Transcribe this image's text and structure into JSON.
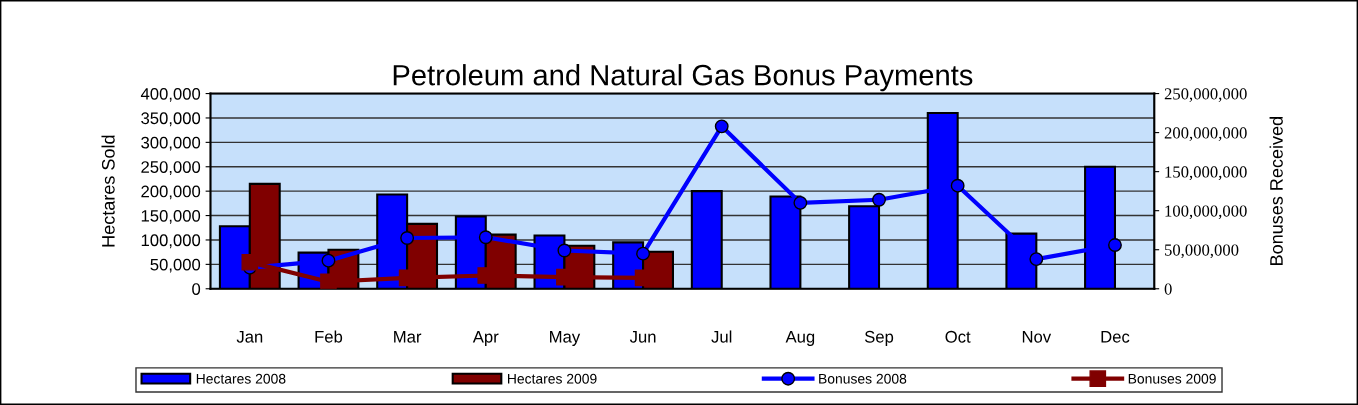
{
  "chart_data": {
    "type": "bar",
    "title": "Petroleum and Natural Gas Bonus Payments",
    "ylabel": "Hectares Sold",
    "y2label": "Bonuses Received",
    "categories": [
      "Jan",
      "Feb",
      "Mar",
      "Apr",
      "May",
      "Jun",
      "Jul",
      "Aug",
      "Sep",
      "Oct",
      "Nov",
      "Dec"
    ],
    "series": [
      {
        "name": "Hectares 2008",
        "color": "#0000ff",
        "values": [
          128000,
          74000,
          193000,
          148000,
          109000,
          95000,
          200000,
          189000,
          169000,
          360000,
          113000,
          250000
        ]
      },
      {
        "name": "Hectares 2009",
        "color": "#800000",
        "values": [
          215000,
          80000,
          133000,
          111000,
          88000,
          76000,
          null,
          null,
          null,
          null,
          null,
          null
        ]
      },
      {
        "name": "Bonuses 2008",
        "type": "line",
        "axis": "y2",
        "marker": "circle",
        "color": "#0000ff",
        "values": [
          27000000,
          36000000,
          65000000,
          66000000,
          49000000,
          45000000,
          208000000,
          110000000,
          114000000,
          132000000,
          38000000,
          56000000
        ]
      },
      {
        "name": "Bonuses 2009",
        "type": "line",
        "axis": "y2",
        "marker": "square",
        "color": "#800000",
        "values": [
          34000000,
          9000000,
          14000000,
          17000000,
          15000000,
          14000000,
          null,
          null,
          null,
          null,
          null,
          null
        ]
      }
    ],
    "ylim": [
      0,
      400000
    ],
    "yticks": [
      {
        "value": 0,
        "label": "0"
      },
      {
        "value": 50000,
        "label": "50,000"
      },
      {
        "value": 100000,
        "label": "100,000"
      },
      {
        "value": 150000,
        "label": "150,000"
      },
      {
        "value": 200000,
        "label": "200,000"
      },
      {
        "value": 250000,
        "label": "250,000"
      },
      {
        "value": 300000,
        "label": "300,000"
      },
      {
        "value": 350000,
        "label": "350,000"
      },
      {
        "value": 400000,
        "label": "400,000"
      }
    ],
    "y2lim": [
      0,
      250000000
    ],
    "y2ticks": [
      {
        "value": 0,
        "label": "0"
      },
      {
        "value": 50000000,
        "label": "50,000,000"
      },
      {
        "value": 100000000,
        "label": "100,000,000"
      },
      {
        "value": 150000000,
        "label": "150,000,000"
      },
      {
        "value": 200000000,
        "label": "200,000,000"
      },
      {
        "value": 250000000,
        "label": "250,000,000"
      }
    ],
    "grid": "y",
    "legend": "bottom"
  }
}
